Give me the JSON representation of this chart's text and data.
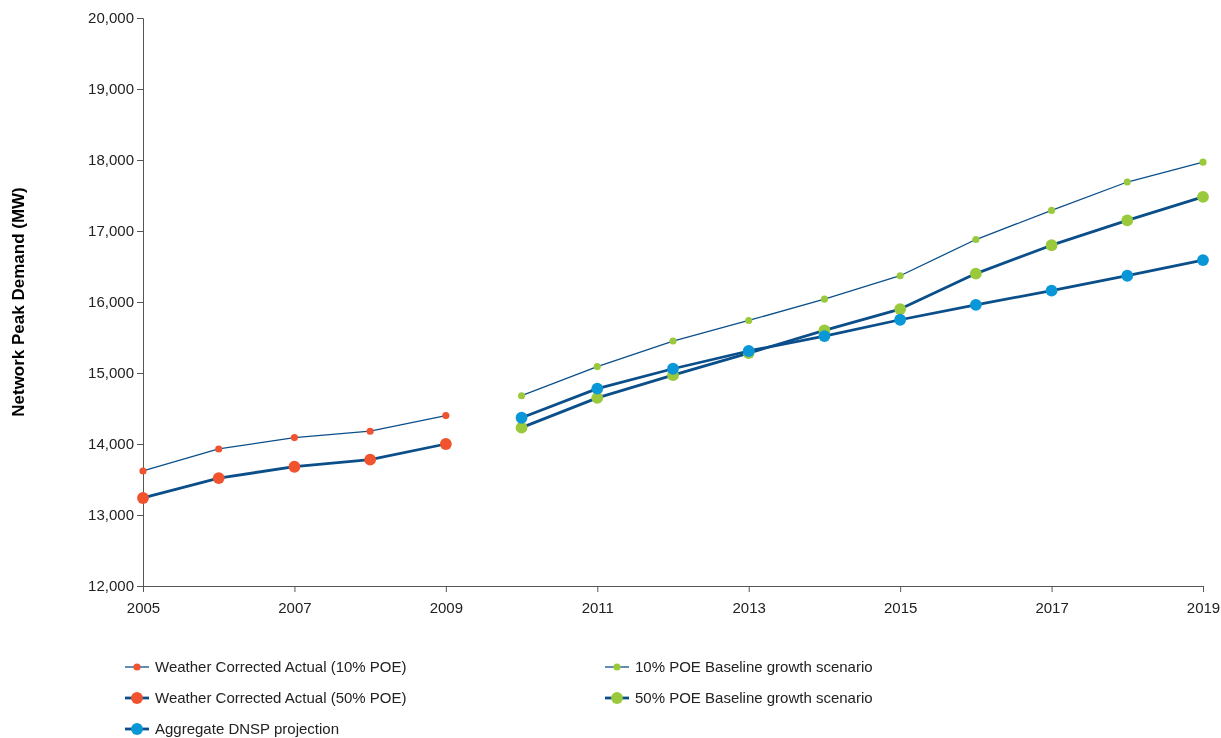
{
  "chart_data": {
    "type": "line",
    "ylabel": "Network Peak Demand (MW)",
    "xlim": [
      2005,
      2019
    ],
    "xticks": [
      2005,
      2007,
      2009,
      2011,
      2013,
      2015,
      2017,
      2019
    ],
    "ylim": [
      12000,
      20000
    ],
    "yticks": [
      {
        "value": 12000,
        "label": "12,000"
      },
      {
        "value": 13000,
        "label": "13,000"
      },
      {
        "value": 14000,
        "label": "14,000"
      },
      {
        "value": 15000,
        "label": "15,000"
      },
      {
        "value": 16000,
        "label": "16,000"
      },
      {
        "value": 17000,
        "label": "17,000"
      },
      {
        "value": 18000,
        "label": "18,000"
      },
      {
        "value": 19000,
        "label": "19,000"
      },
      {
        "value": 20000,
        "label": "20,000"
      }
    ],
    "grid": false,
    "legend": "bottom",
    "marker": "circle",
    "line_style": "solid",
    "series": [
      {
        "name": "Weather Corrected Actual (10% POE)",
        "color": "#f0532d",
        "x": [
          2005,
          2006,
          2007,
          2008,
          2009
        ],
        "values": [
          13620,
          13930,
          14090,
          14180,
          14400
        ]
      },
      {
        "name": "Weather Corrected Actual (50% POE)",
        "color": "#f0532d",
        "x": [
          2005,
          2006,
          2007,
          2008,
          2009
        ],
        "values": [
          13240,
          13520,
          13680,
          13780,
          14000
        ]
      },
      {
        "name": "Aggregate DNSP projection",
        "color": "#0a97d7",
        "x": [
          2010,
          2011,
          2012,
          2013,
          2014,
          2015,
          2016,
          2017,
          2018,
          2019
        ],
        "values": [
          14370,
          14780,
          15060,
          15310,
          15520,
          15750,
          15960,
          16160,
          16370,
          16590
        ]
      },
      {
        "name": "10% POE Baseline growth scenario",
        "color": "#9bc93c",
        "x": [
          2010,
          2011,
          2012,
          2013,
          2014,
          2015,
          2016,
          2017,
          2018,
          2019
        ],
        "values": [
          14680,
          15090,
          15450,
          15740,
          16040,
          16370,
          16880,
          17290,
          17690,
          17970
        ]
      },
      {
        "name": "50% POE Baseline growth scenario",
        "color": "#9bc93c",
        "x": [
          2010,
          2011,
          2012,
          2013,
          2014,
          2015,
          2016,
          2017,
          2018,
          2019
        ],
        "values": [
          14230,
          14650,
          14970,
          15280,
          15600,
          15900,
          16400,
          16800,
          17150,
          17480
        ]
      }
    ]
  }
}
